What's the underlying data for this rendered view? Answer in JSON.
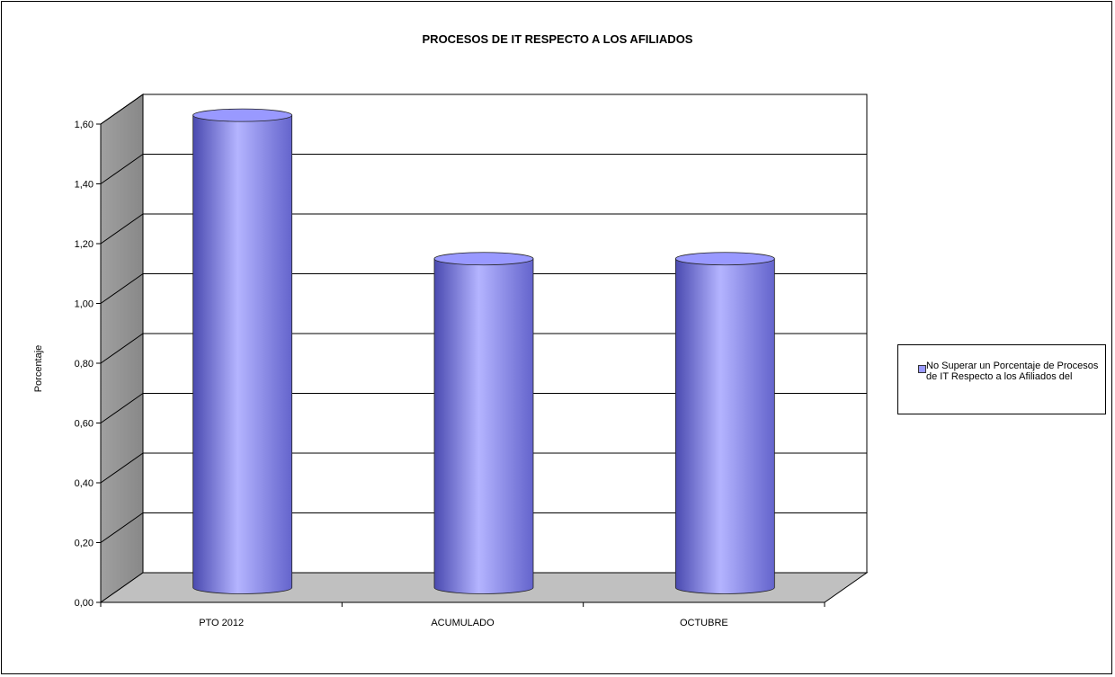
{
  "chart_data": {
    "type": "bar",
    "title": "PROCESOS DE IT RESPECTO A LOS AFILIADOS",
    "xlabel": "",
    "ylabel": "Porcentaje",
    "categories": [
      "PTO 2012",
      "ACUMULADO",
      "OCTUBRE"
    ],
    "series": [
      {
        "name": "No Superar un Porcentaje de Procesos de IT Respecto a los Afiliados del",
        "values": [
          1.58,
          1.1,
          1.1
        ]
      }
    ],
    "ylim": [
      0,
      1.6
    ],
    "yticks": [
      "0,00",
      "0,20",
      "0,40",
      "0,60",
      "0,80",
      "1,00",
      "1,20",
      "1,40",
      "1,60"
    ],
    "grid": true,
    "legend_position": "right",
    "colors": {
      "bar": "#9999ff",
      "bar_dark": "#4a4ab0",
      "bar_light": "#b4b4ff",
      "back_wall": "#ffffff",
      "side_wall": "#9a9a9a",
      "floor": "#c0c0c0"
    }
  }
}
